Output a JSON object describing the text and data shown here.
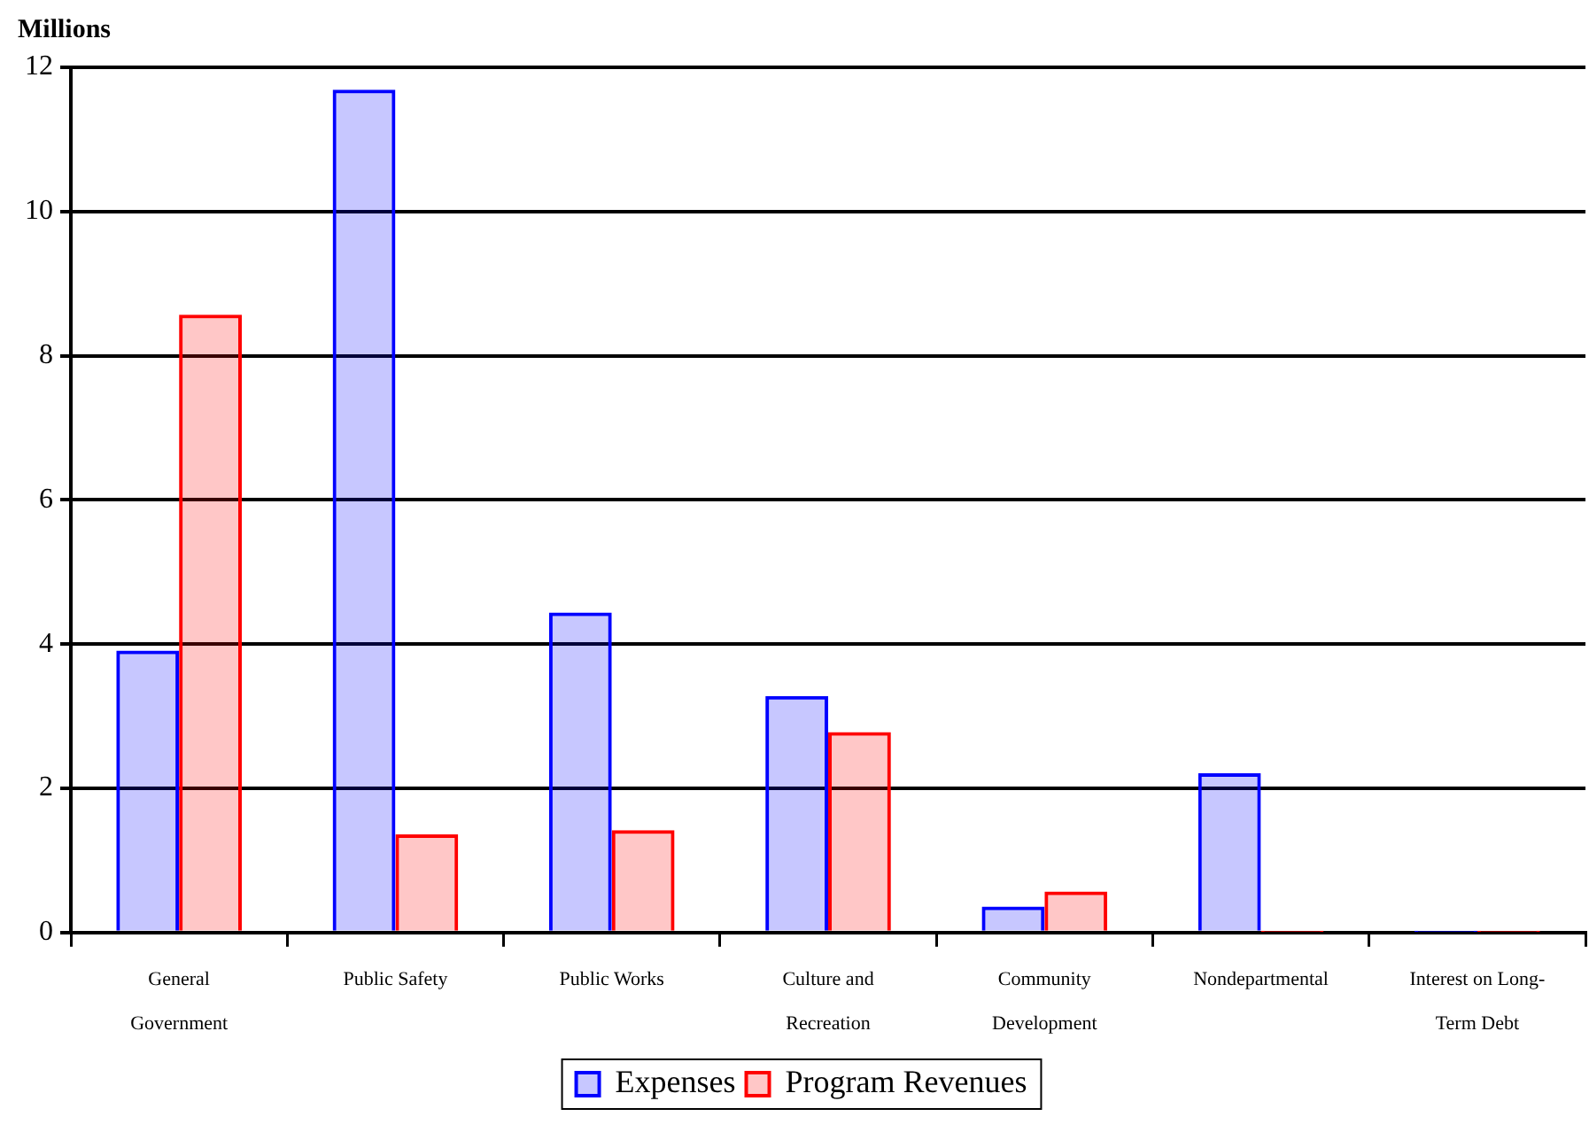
{
  "chart_data": {
    "type": "bar",
    "ylabel": "Millions",
    "categories": [
      "General Government",
      "Public Safety",
      "Public Works",
      "Culture and Recreation",
      "Community Development",
      "Nondepartmental",
      "Interest on Long-Term Debt"
    ],
    "series": [
      {
        "name": "Expenses",
        "color": "#0000ff",
        "values": [
          3.91,
          11.69,
          4.44,
          3.28,
          0.36,
          2.21,
          0.01
        ]
      },
      {
        "name": "Program Revenues",
        "color": "#ff0000",
        "values": [
          8.57,
          1.36,
          1.42,
          2.78,
          0.57,
          0.01,
          0.01
        ]
      }
    ],
    "ylim": [
      0,
      12
    ],
    "yticks": [
      0,
      2,
      4,
      6,
      8,
      10,
      12
    ],
    "grid": "y",
    "legend": "bottom"
  }
}
